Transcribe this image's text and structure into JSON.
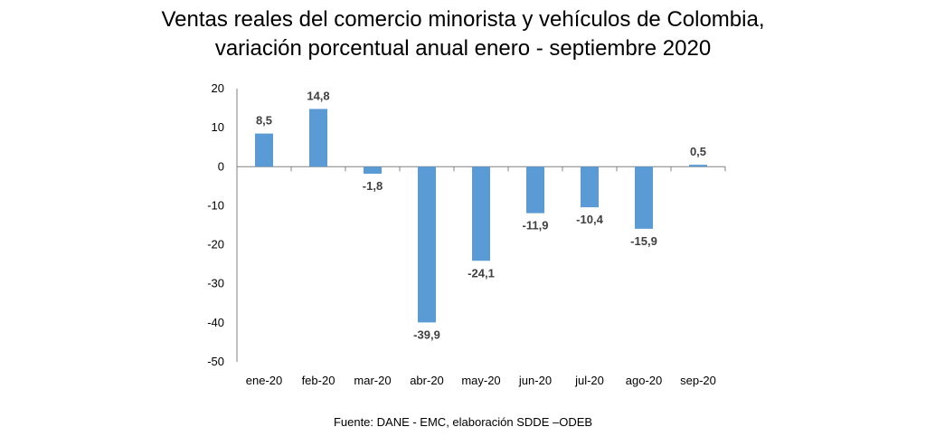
{
  "chart_data": {
    "type": "bar",
    "title_line1": "Ventas reales del comercio minorista y vehículos de Colombia,",
    "title_line2": "variación porcentual anual enero - septiembre 2020",
    "categories": [
      "ene-20",
      "feb-20",
      "mar-20",
      "abr-20",
      "may-20",
      "jun-20",
      "jul-20",
      "ago-20",
      "sep-20"
    ],
    "values": [
      8.5,
      14.8,
      -1.8,
      -39.9,
      -24.1,
      -11.9,
      -10.4,
      -15.9,
      0.5
    ],
    "data_labels": [
      "8,5",
      "14,8",
      "-1,8",
      "-39,9",
      "-24,1",
      "-11,9",
      "-10,4",
      "-15,9",
      "0,5"
    ],
    "yticks": [
      20,
      10,
      0,
      -10,
      -20,
      -30,
      -40,
      -50
    ],
    "ylim": [
      -50,
      20
    ],
    "xlabel": "",
    "ylabel": "",
    "grid": false,
    "bar_color": "#5b9bd5",
    "source": "Fuente: DANE - EMC, elaboración SDDE –ODEB"
  }
}
